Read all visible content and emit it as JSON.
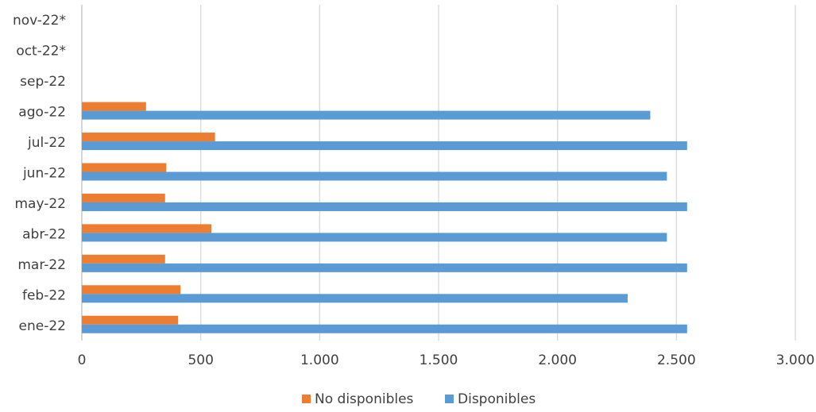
{
  "chart_data": {
    "type": "bar",
    "orientation": "horizontal",
    "categories": [
      "nov-22*",
      "oct-22*",
      "sep-22",
      "ago-22",
      "jul-22",
      "jun-22",
      "may-22",
      "abr-22",
      "mar-22",
      "feb-22",
      "ene-22"
    ],
    "series": [
      {
        "name": "No disponibles",
        "color": "#ED7D31",
        "values": [
          null,
          null,
          null,
          270,
          560,
          355,
          350,
          545,
          350,
          415,
          405
        ]
      },
      {
        "name": "Disponibles",
        "color": "#5B9BD5",
        "values": [
          null,
          null,
          null,
          2390,
          2545,
          2460,
          2545,
          2460,
          2545,
          2295,
          2545
        ]
      }
    ],
    "xlim": [
      0,
      3000
    ],
    "ticks": [
      {
        "value": 0,
        "label": "0"
      },
      {
        "value": 500,
        "label": "500"
      },
      {
        "value": 1000,
        "label": "1.000"
      },
      {
        "value": 1500,
        "label": "1.500"
      },
      {
        "value": 2000,
        "label": "2.000"
      },
      {
        "value": 2500,
        "label": "2.500"
      },
      {
        "value": 3000,
        "label": "3.000"
      }
    ],
    "grid": "vertical",
    "legend_position": "bottom",
    "gridline_color": "#D9D9D9",
    "axis_color": "#BFBFBF"
  }
}
